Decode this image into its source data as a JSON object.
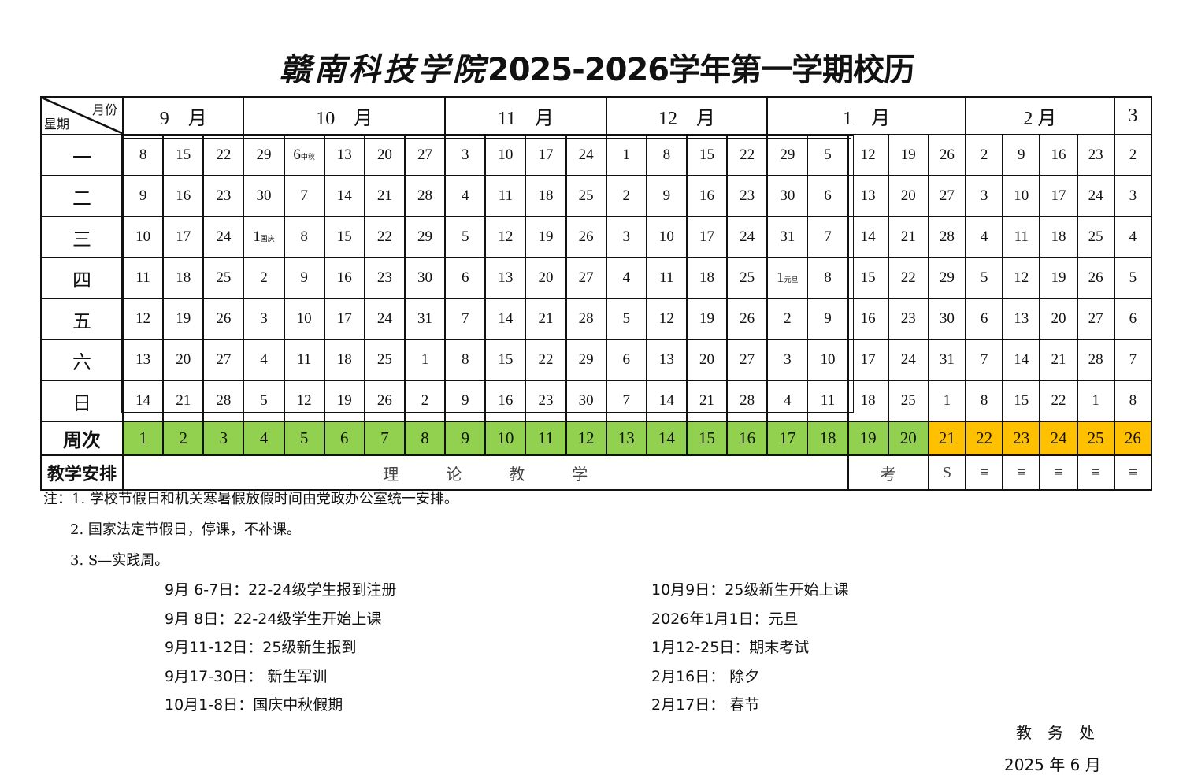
{
  "title": {
    "school": "赣南科技学院",
    "rest": "2025-2026学年第一学期校历"
  },
  "corner": {
    "month_label": "月份",
    "weekday_label": "星期"
  },
  "months": [
    {
      "label": "9　月",
      "span": 3
    },
    {
      "label": "10　月",
      "span": 5
    },
    {
      "label": "11　月",
      "span": 4
    },
    {
      "label": "12　月",
      "span": 4
    },
    {
      "label": "1　月",
      "span": 5
    },
    {
      "label": "2 月",
      "span": 4
    },
    {
      "label": "3",
      "span": 1
    }
  ],
  "weekdays": [
    "一",
    "二",
    "三",
    "四",
    "五",
    "六",
    "日"
  ],
  "days": [
    [
      {
        "d": "8"
      },
      {
        "d": "15"
      },
      {
        "d": "22"
      },
      {
        "d": "29"
      },
      {
        "d": "6",
        "note": "中秋"
      },
      {
        "d": "13"
      },
      {
        "d": "20"
      },
      {
        "d": "27"
      },
      {
        "d": "3"
      },
      {
        "d": "10"
      },
      {
        "d": "17"
      },
      {
        "d": "24"
      },
      {
        "d": "1"
      },
      {
        "d": "8"
      },
      {
        "d": "15"
      },
      {
        "d": "22"
      },
      {
        "d": "29"
      },
      {
        "d": "5"
      },
      {
        "d": "12"
      },
      {
        "d": "19"
      },
      {
        "d": "26"
      },
      {
        "d": "2"
      },
      {
        "d": "9"
      },
      {
        "d": "16"
      },
      {
        "d": "23"
      },
      {
        "d": "2"
      }
    ],
    [
      {
        "d": "9"
      },
      {
        "d": "16"
      },
      {
        "d": "23"
      },
      {
        "d": "30"
      },
      {
        "d": "7"
      },
      {
        "d": "14"
      },
      {
        "d": "21"
      },
      {
        "d": "28"
      },
      {
        "d": "4"
      },
      {
        "d": "11"
      },
      {
        "d": "18"
      },
      {
        "d": "25"
      },
      {
        "d": "2"
      },
      {
        "d": "9"
      },
      {
        "d": "16"
      },
      {
        "d": "23"
      },
      {
        "d": "30"
      },
      {
        "d": "6"
      },
      {
        "d": "13"
      },
      {
        "d": "20"
      },
      {
        "d": "27"
      },
      {
        "d": "3"
      },
      {
        "d": "10"
      },
      {
        "d": "17"
      },
      {
        "d": "24"
      },
      {
        "d": "3"
      }
    ],
    [
      {
        "d": "10"
      },
      {
        "d": "17"
      },
      {
        "d": "24"
      },
      {
        "d": "1",
        "note": "国庆"
      },
      {
        "d": "8"
      },
      {
        "d": "15"
      },
      {
        "d": "22"
      },
      {
        "d": "29"
      },
      {
        "d": "5"
      },
      {
        "d": "12"
      },
      {
        "d": "19"
      },
      {
        "d": "26"
      },
      {
        "d": "3"
      },
      {
        "d": "10"
      },
      {
        "d": "17"
      },
      {
        "d": "24"
      },
      {
        "d": "31"
      },
      {
        "d": "7"
      },
      {
        "d": "14"
      },
      {
        "d": "21"
      },
      {
        "d": "28"
      },
      {
        "d": "4"
      },
      {
        "d": "11"
      },
      {
        "d": "18"
      },
      {
        "d": "25"
      },
      {
        "d": "4"
      }
    ],
    [
      {
        "d": "11"
      },
      {
        "d": "18"
      },
      {
        "d": "25"
      },
      {
        "d": "2"
      },
      {
        "d": "9"
      },
      {
        "d": "16"
      },
      {
        "d": "23"
      },
      {
        "d": "30"
      },
      {
        "d": "6"
      },
      {
        "d": "13"
      },
      {
        "d": "20"
      },
      {
        "d": "27"
      },
      {
        "d": "4"
      },
      {
        "d": "11"
      },
      {
        "d": "18"
      },
      {
        "d": "25"
      },
      {
        "d": "1",
        "note": "元旦"
      },
      {
        "d": "8"
      },
      {
        "d": "15"
      },
      {
        "d": "22"
      },
      {
        "d": "29"
      },
      {
        "d": "5"
      },
      {
        "d": "12"
      },
      {
        "d": "19"
      },
      {
        "d": "26"
      },
      {
        "d": "5"
      }
    ],
    [
      {
        "d": "12"
      },
      {
        "d": "19"
      },
      {
        "d": "26"
      },
      {
        "d": "3"
      },
      {
        "d": "10"
      },
      {
        "d": "17"
      },
      {
        "d": "24"
      },
      {
        "d": "31"
      },
      {
        "d": "7"
      },
      {
        "d": "14"
      },
      {
        "d": "21"
      },
      {
        "d": "28"
      },
      {
        "d": "5"
      },
      {
        "d": "12"
      },
      {
        "d": "19"
      },
      {
        "d": "26"
      },
      {
        "d": "2"
      },
      {
        "d": "9"
      },
      {
        "d": "16"
      },
      {
        "d": "23"
      },
      {
        "d": "30"
      },
      {
        "d": "6"
      },
      {
        "d": "13"
      },
      {
        "d": "20"
      },
      {
        "d": "27"
      },
      {
        "d": "6"
      }
    ],
    [
      {
        "d": "13"
      },
      {
        "d": "20"
      },
      {
        "d": "27"
      },
      {
        "d": "4"
      },
      {
        "d": "11"
      },
      {
        "d": "18"
      },
      {
        "d": "25"
      },
      {
        "d": "1"
      },
      {
        "d": "8"
      },
      {
        "d": "15"
      },
      {
        "d": "22"
      },
      {
        "d": "29"
      },
      {
        "d": "6"
      },
      {
        "d": "13"
      },
      {
        "d": "20"
      },
      {
        "d": "27"
      },
      {
        "d": "3"
      },
      {
        "d": "10"
      },
      {
        "d": "17"
      },
      {
        "d": "24"
      },
      {
        "d": "31"
      },
      {
        "d": "7"
      },
      {
        "d": "14"
      },
      {
        "d": "21"
      },
      {
        "d": "28"
      },
      {
        "d": "7"
      }
    ],
    [
      {
        "d": "14"
      },
      {
        "d": "21"
      },
      {
        "d": "28"
      },
      {
        "d": "5"
      },
      {
        "d": "12"
      },
      {
        "d": "19"
      },
      {
        "d": "26"
      },
      {
        "d": "2"
      },
      {
        "d": "9"
      },
      {
        "d": "16"
      },
      {
        "d": "23"
      },
      {
        "d": "30"
      },
      {
        "d": "7"
      },
      {
        "d": "14"
      },
      {
        "d": "21"
      },
      {
        "d": "28"
      },
      {
        "d": "4"
      },
      {
        "d": "11"
      },
      {
        "d": "18"
      },
      {
        "d": "25"
      },
      {
        "d": "1"
      },
      {
        "d": "8"
      },
      {
        "d": "15"
      },
      {
        "d": "22"
      },
      {
        "d": "1"
      },
      {
        "d": "8"
      }
    ]
  ],
  "week_row": {
    "label": "周次",
    "weeks": [
      "1",
      "2",
      "3",
      "4",
      "5",
      "6",
      "7",
      "8",
      "9",
      "10",
      "11",
      "12",
      "13",
      "14",
      "15",
      "16",
      "17",
      "18",
      "19",
      "20",
      "21",
      "22",
      "23",
      "24",
      "25",
      "26"
    ],
    "teaching_color": "#92d050",
    "break_color": "#ffc000",
    "break_from_week": 21
  },
  "arrangement_row": {
    "label": "教学安排",
    "cells": [
      {
        "text": "理　　　论　　　教　　　学",
        "span": 18
      },
      {
        "text": "考",
        "span": 2
      },
      {
        "text": "S",
        "span": 1
      },
      {
        "text": "≡",
        "span": 1
      },
      {
        "text": "≡",
        "span": 1
      },
      {
        "text": "≡",
        "span": 1
      },
      {
        "text": "≡",
        "span": 1
      },
      {
        "text": "≡",
        "span": 1
      }
    ]
  },
  "notes": [
    "注：1. 学校节假日和机关寒暑假放假时间由党政办公室统一安排。",
    "2. 国家法定节假日，停课，不补课。",
    "3. S—实践周。"
  ],
  "events_left": [
    "9月 6-7日：22-24级学生报到注册",
    "9月 8日：22-24级学生开始上课",
    "9月11-12日：25级新生报到",
    "9月17-30日：  新生军训",
    "10月1-8日：国庆中秋假期"
  ],
  "events_right": [
    "10月9日：25级新生开始上课",
    "2026年1月1日：元旦",
    "1月12-25日：期末考试",
    "2月16日：   除夕",
    "2月17日：  春节"
  ],
  "signature": {
    "office": "教　务　处",
    "date": "2025 年 6 月"
  }
}
